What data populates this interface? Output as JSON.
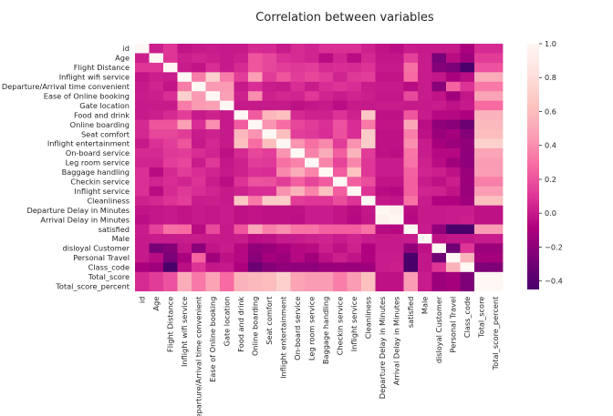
{
  "chart_data": {
    "type": "heatmap",
    "title": "Correlation between variables",
    "variables": [
      "id",
      "Age",
      "Flight Distance",
      "Inflight wifi service",
      "Departure/Arrival time convenient",
      "Ease of Online booking",
      "Gate location",
      "Food and drink",
      "Online boarding",
      "Seat comfort",
      "Inflight entertainment",
      "On-board service",
      "Leg room service",
      "Baggage handling",
      "Checkin service",
      "Inflight service",
      "Cleanliness",
      "Departure Delay in Minutes",
      "Arrival Delay in Minutes",
      "satisfied",
      "Male",
      "disloyal Customer",
      "Personal Travel",
      "Class_code",
      "Total_score",
      "Total_score_percent"
    ],
    "matrix": [
      [
        1.0,
        0.02,
        0.1,
        -0.02,
        -0.0,
        0.01,
        -0.0,
        0.0,
        0.06,
        0.05,
        0.0,
        0.06,
        0.04,
        0.08,
        0.08,
        0.08,
        0.03,
        -0.02,
        -0.04,
        0.01,
        0.0,
        0.0,
        0.0,
        -0.1,
        0.06,
        0.06
      ],
      [
        0.02,
        1.0,
        0.1,
        0.02,
        0.04,
        0.02,
        -0.0,
        0.02,
        0.21,
        0.16,
        0.08,
        0.06,
        0.04,
        -0.05,
        0.04,
        -0.05,
        0.05,
        -0.01,
        -0.01,
        0.14,
        0.01,
        -0.28,
        -0.05,
        -0.14,
        0.12,
        0.12
      ],
      [
        0.1,
        0.1,
        1.0,
        0.01,
        -0.02,
        0.07,
        0.0,
        0.06,
        0.21,
        0.16,
        0.13,
        0.11,
        0.13,
        0.06,
        0.07,
        0.06,
        0.09,
        0.0,
        -0.0,
        0.3,
        0.01,
        -0.23,
        -0.27,
        -0.45,
        0.2,
        0.2
      ],
      [
        -0.02,
        0.02,
        0.01,
        1.0,
        0.34,
        0.72,
        0.34,
        0.13,
        0.46,
        0.12,
        0.21,
        0.12,
        0.16,
        0.12,
        0.04,
        0.11,
        0.13,
        -0.02,
        -0.02,
        0.28,
        0.01,
        -0.01,
        -0.1,
        -0.04,
        0.52,
        0.52
      ],
      [
        -0.0,
        0.04,
        -0.02,
        0.34,
        1.0,
        0.44,
        0.44,
        0.0,
        0.07,
        0.01,
        -0.0,
        0.07,
        0.01,
        0.07,
        0.09,
        0.07,
        0.01,
        0.0,
        -0.0,
        -0.05,
        0.01,
        -0.21,
        0.26,
        0.09,
        0.33,
        0.33
      ],
      [
        0.01,
        0.02,
        0.07,
        0.72,
        0.44,
        1.0,
        0.46,
        0.03,
        0.4,
        0.03,
        0.05,
        0.04,
        0.11,
        0.04,
        0.01,
        0.04,
        0.02,
        -0.01,
        -0.01,
        0.17,
        0.01,
        -0.02,
        -0.13,
        -0.01,
        0.48,
        0.48
      ],
      [
        -0.0,
        -0.0,
        0.0,
        0.34,
        0.44,
        0.46,
        1.0,
        -0.0,
        0.0,
        0.0,
        0.0,
        -0.03,
        -0.01,
        0.0,
        -0.04,
        0.0,
        -0.0,
        0.01,
        0.01,
        -0.0,
        -0.0,
        0.01,
        -0.03,
        0.0,
        0.28,
        0.28
      ],
      [
        0.0,
        0.02,
        0.06,
        0.13,
        0.0,
        0.03,
        -0.0,
        1.0,
        0.23,
        0.57,
        0.62,
        0.06,
        0.03,
        0.03,
        0.09,
        0.03,
        0.66,
        -0.03,
        -0.03,
        0.21,
        0.01,
        -0.06,
        -0.06,
        -0.09,
        0.55,
        0.55
      ],
      [
        0.06,
        0.21,
        0.21,
        0.46,
        0.07,
        0.4,
        0.0,
        0.23,
        1.0,
        0.42,
        0.29,
        0.16,
        0.12,
        0.08,
        0.2,
        0.07,
        0.33,
        -0.02,
        -0.02,
        0.5,
        -0.04,
        -0.19,
        -0.22,
        -0.32,
        0.58,
        0.58
      ],
      [
        0.05,
        0.16,
        0.16,
        0.12,
        0.01,
        0.03,
        0.0,
        0.57,
        0.42,
        1.0,
        0.61,
        0.13,
        0.11,
        0.07,
        0.19,
        0.07,
        0.68,
        -0.03,
        -0.03,
        0.35,
        -0.03,
        -0.16,
        -0.12,
        -0.23,
        0.6,
        0.6
      ],
      [
        0.0,
        0.08,
        0.13,
        0.21,
        -0.0,
        0.05,
        0.0,
        0.62,
        0.29,
        0.61,
        1.0,
        0.42,
        0.3,
        0.38,
        0.12,
        0.41,
        0.69,
        -0.03,
        -0.03,
        0.4,
        0.01,
        -0.11,
        -0.15,
        -0.19,
        0.72,
        0.72
      ],
      [
        0.06,
        0.06,
        0.11,
        0.12,
        0.07,
        0.04,
        -0.03,
        0.06,
        0.16,
        0.13,
        0.42,
        1.0,
        0.36,
        0.52,
        0.24,
        0.55,
        0.12,
        -0.03,
        -0.04,
        0.32,
        0.01,
        -0.06,
        -0.06,
        -0.2,
        0.48,
        0.48
      ],
      [
        0.04,
        0.04,
        0.13,
        0.16,
        0.01,
        0.11,
        -0.01,
        0.03,
        0.12,
        0.11,
        0.3,
        0.36,
        1.0,
        0.37,
        0.15,
        0.37,
        0.1,
        0.01,
        0.01,
        0.31,
        0.03,
        -0.05,
        -0.13,
        -0.2,
        0.45,
        0.45
      ],
      [
        0.08,
        -0.05,
        0.06,
        0.12,
        0.07,
        0.04,
        0.0,
        0.03,
        0.08,
        0.07,
        0.38,
        0.52,
        0.37,
        1.0,
        0.23,
        0.63,
        0.1,
        0.01,
        0.01,
        0.25,
        0.04,
        0.02,
        -0.03,
        -0.16,
        0.45,
        0.45
      ],
      [
        0.08,
        0.04,
        0.07,
        0.04,
        0.09,
        0.01,
        -0.04,
        0.09,
        0.2,
        0.19,
        0.12,
        0.24,
        0.15,
        0.23,
        1.0,
        0.24,
        0.18,
        -0.02,
        -0.02,
        0.24,
        0.01,
        -0.03,
        0.02,
        -0.15,
        0.35,
        0.35
      ],
      [
        0.08,
        -0.05,
        0.06,
        0.11,
        0.07,
        0.04,
        0.0,
        0.03,
        0.07,
        0.07,
        0.41,
        0.55,
        0.37,
        0.63,
        0.24,
        1.0,
        0.09,
        -0.05,
        -0.06,
        0.24,
        0.04,
        0.03,
        -0.02,
        -0.16,
        0.45,
        0.45
      ],
      [
        0.03,
        0.05,
        0.09,
        0.13,
        0.01,
        0.02,
        -0.0,
        0.66,
        0.33,
        0.68,
        0.69,
        0.12,
        0.1,
        0.1,
        0.18,
        0.09,
        1.0,
        -0.01,
        -0.02,
        0.31,
        0.01,
        -0.08,
        -0.08,
        -0.14,
        0.62,
        0.62
      ],
      [
        -0.02,
        -0.01,
        0.0,
        -0.02,
        0.0,
        -0.01,
        0.01,
        -0.03,
        -0.02,
        -0.03,
        -0.03,
        -0.03,
        0.01,
        0.01,
        -0.02,
        -0.05,
        -0.01,
        1.0,
        0.96,
        -0.05,
        0.0,
        0.0,
        0.01,
        0.01,
        -0.03,
        -0.03
      ],
      [
        -0.04,
        -0.01,
        -0.0,
        -0.02,
        -0.0,
        -0.01,
        0.01,
        -0.03,
        -0.02,
        -0.03,
        -0.03,
        -0.04,
        0.01,
        0.01,
        -0.02,
        -0.06,
        -0.02,
        0.96,
        1.0,
        -0.06,
        0.0,
        0.0,
        0.01,
        0.02,
        -0.03,
        -0.03
      ],
      [
        0.01,
        0.14,
        0.3,
        0.28,
        -0.05,
        0.17,
        -0.0,
        0.21,
        0.5,
        0.35,
        0.4,
        0.32,
        0.31,
        0.25,
        0.24,
        0.24,
        0.31,
        -0.05,
        -0.06,
        1.0,
        0.01,
        -0.19,
        -0.45,
        -0.45,
        0.45,
        0.45
      ],
      [
        0.0,
        0.01,
        0.01,
        0.01,
        0.01,
        0.01,
        -0.0,
        0.01,
        -0.04,
        -0.03,
        0.01,
        0.01,
        0.03,
        0.04,
        0.01,
        0.04,
        0.01,
        0.0,
        0.0,
        0.01,
        1.0,
        -0.03,
        -0.01,
        -0.01,
        0.01,
        0.01
      ],
      [
        0.0,
        -0.28,
        -0.23,
        -0.01,
        -0.21,
        -0.02,
        0.01,
        -0.06,
        -0.19,
        -0.16,
        -0.11,
        -0.06,
        -0.05,
        0.02,
        -0.03,
        0.03,
        -0.08,
        0.0,
        0.0,
        -0.19,
        -0.03,
        1.0,
        -0.31,
        0.1,
        -0.15,
        -0.15
      ],
      [
        0.0,
        -0.05,
        -0.27,
        -0.1,
        0.26,
        -0.13,
        -0.03,
        -0.06,
        -0.22,
        -0.12,
        -0.15,
        -0.06,
        -0.13,
        -0.03,
        0.02,
        -0.02,
        -0.08,
        0.01,
        0.01,
        -0.45,
        -0.01,
        -0.31,
        1.0,
        0.55,
        -0.12,
        -0.12
      ],
      [
        -0.1,
        -0.14,
        -0.45,
        -0.04,
        0.09,
        -0.01,
        0.0,
        -0.09,
        -0.32,
        -0.23,
        -0.19,
        -0.2,
        -0.2,
        -0.16,
        -0.15,
        -0.16,
        -0.14,
        0.01,
        0.02,
        -0.45,
        -0.01,
        0.1,
        0.55,
        1.0,
        -0.25,
        -0.25
      ],
      [
        0.06,
        0.12,
        0.2,
        0.52,
        0.33,
        0.48,
        0.28,
        0.55,
        0.58,
        0.6,
        0.72,
        0.48,
        0.45,
        0.45,
        0.35,
        0.45,
        0.62,
        -0.03,
        -0.03,
        0.45,
        0.01,
        -0.15,
        -0.12,
        -0.25,
        1.0,
        1.0
      ],
      [
        0.06,
        0.12,
        0.2,
        0.52,
        0.33,
        0.48,
        0.28,
        0.55,
        0.58,
        0.6,
        0.72,
        0.48,
        0.45,
        0.45,
        0.35,
        0.45,
        0.62,
        -0.03,
        -0.03,
        0.45,
        0.01,
        -0.15,
        -0.12,
        -0.25,
        1.0,
        1.0
      ]
    ],
    "colorbar": {
      "vmin": -0.45,
      "vmax": 1.0,
      "ticks": [
        "1.0",
        "0.8",
        "0.6",
        "0.4",
        "0.2",
        "0.0",
        "−0.2",
        "−0.4"
      ],
      "tick_values": [
        1.0,
        0.8,
        0.6,
        0.4,
        0.2,
        0.0,
        -0.2,
        -0.4
      ]
    },
    "colormap": "RdPu_r",
    "colormap_stops": [
      "#49006a",
      "#7a0177",
      "#ae017e",
      "#dd3497",
      "#f768a1",
      "#fa9fb5",
      "#fcc5c0",
      "#fde0dd",
      "#fff7f3"
    ]
  }
}
